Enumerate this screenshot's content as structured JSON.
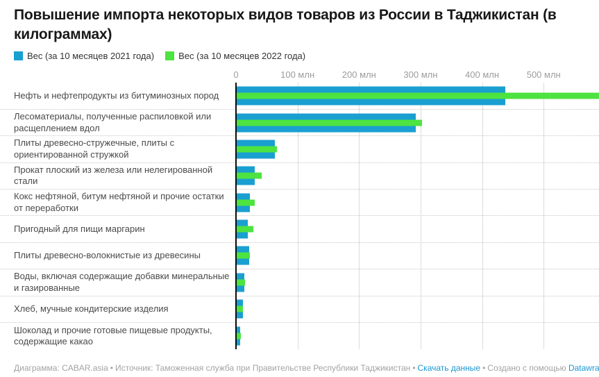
{
  "title": "Повышение импорта некоторых видов товаров из России в Таджикистан (в килограммах)",
  "legend": [
    {
      "label": "Вес (за 10 месяцев 2021 года)",
      "color": "#1A9FD1"
    },
    {
      "label": "Вес (за 10 месяцев 2022 года)",
      "color": "#4DE340"
    }
  ],
  "chart_data": {
    "type": "bar",
    "orientation": "horizontal",
    "title": "Повышение импорта некоторых видов товаров из России в Таджикистан (в килограммах)",
    "unit": "кг",
    "value_scale": "millions",
    "categories": [
      "Нефть и нефтепродукты из битуминозных пород",
      "Лесоматериалы, полученные распиловкой или расщеплением вдол",
      "Плиты древесно-стружечные, плиты с ориентированной стружкой",
      "Прокат плоский из железа или нелегированной стали",
      "Кокс нефтяной, битум нефтяной и прочие остатки от переработки",
      "Пригодный для пищи маргарин",
      "Плиты древесно-волокнистые из древесины",
      "Воды, включая содержащие добавки минеральные и газированные",
      "Хлеб, мучные кондитерские изделия",
      "Шоколад и прочие готовые пищевые продукты, содержащие какао"
    ],
    "series": [
      {
        "name": "Вес (за 10 месяцев 2021 года)",
        "color": "#1A9FD1",
        "values": [
          438,
          292,
          63,
          31,
          22,
          19,
          21,
          13,
          11,
          6.5
        ]
      },
      {
        "name": "Вес (за 10 месяцев 2022 года)",
        "color": "#4DE340",
        "values": [
          590,
          302,
          66,
          42,
          30,
          28,
          23,
          15,
          11.5,
          8
        ]
      }
    ],
    "bar_render_order": [
      0,
      1,
      0
    ],
    "ticks": [
      {
        "label": "0",
        "value": 0
      },
      {
        "label": "100 млн",
        "value": 100
      },
      {
        "label": "200 млн",
        "value": 200
      },
      {
        "label": "300 млн",
        "value": 300
      },
      {
        "label": "400 млн",
        "value": 400
      },
      {
        "label": "500 млн",
        "value": 500
      }
    ],
    "xmax": 590,
    "grid": true,
    "legend_position": "top",
    "note": "Первый зелёный столбец обрезан правым краем области диаграммы"
  },
  "footer": {
    "chart_credit": "Диаграмма: CABAR.asia",
    "source": "Источник: Таможенная служба при Правительстве Республики Таджикистан",
    "download_link": "Скачать данные",
    "created_with": "Создано с помощью",
    "datawrapper_link": "Datawrapper",
    "bullet": "•",
    "link_color": "#1D96D1"
  }
}
